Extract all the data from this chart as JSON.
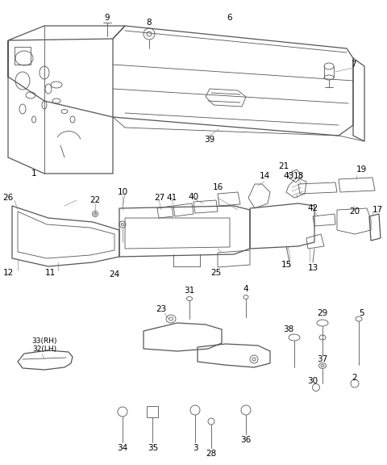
{
  "bg_color": "#ffffff",
  "line_color": "#555555",
  "lw_main": 0.9,
  "lw_thin": 0.6,
  "lw_hair": 0.4,
  "fig_width": 4.8,
  "fig_height": 5.76,
  "dpi": 100
}
